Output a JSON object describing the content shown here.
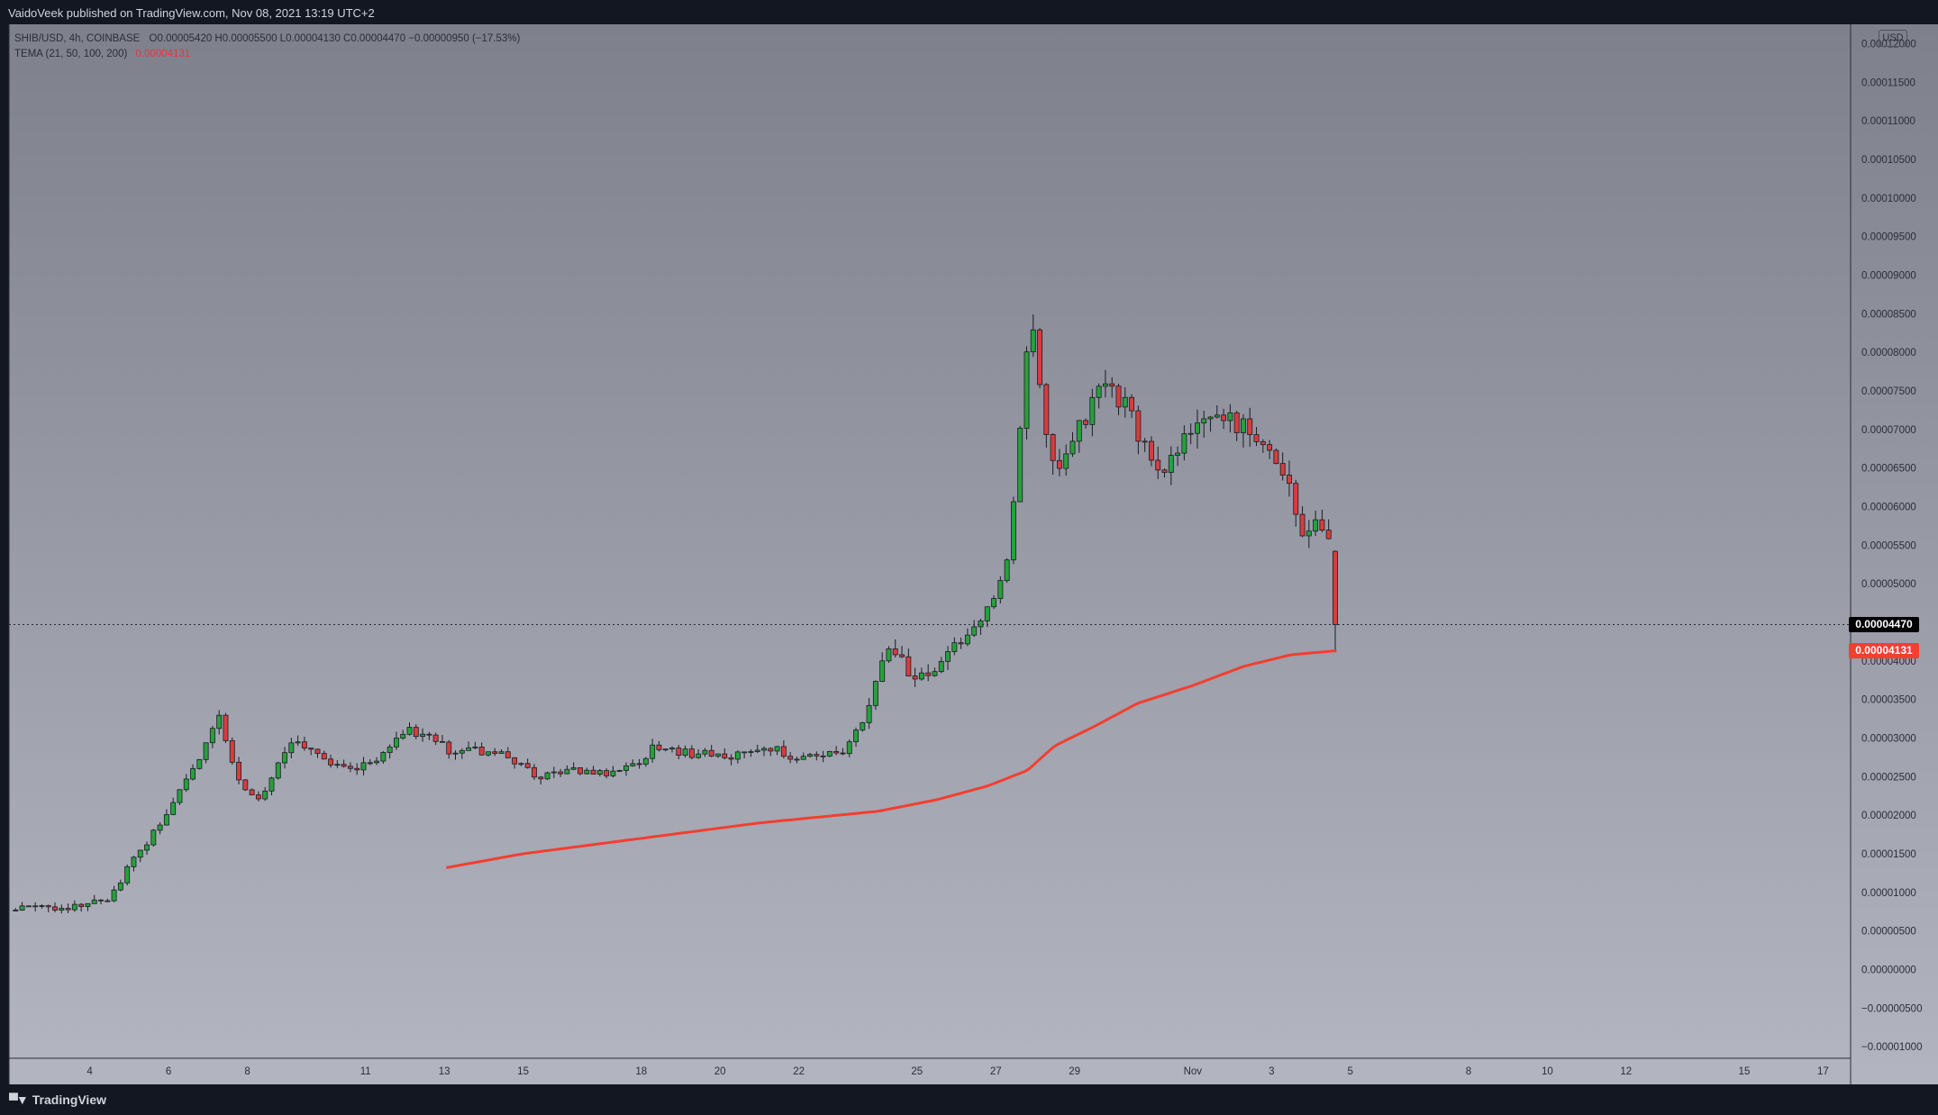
{
  "header": {
    "published_text": "VaidoVeek published on TradingView.com, Nov 08, 2021 13:19 UTC+2"
  },
  "legend": {
    "symbol": "SHIB/USD, 4h, COINBASE",
    "ohlc": "O0.00005420 H0.00005500 L0.00004130 C0.00004470 −0.00000950 (−17.53%)",
    "indicator": "TEMA (21, 50, 100, 200)",
    "indicator_value": "0.00004131"
  },
  "currency_badge": "USD",
  "price_tags": {
    "last_price": "0.00004470",
    "tema_price": "0.00004131"
  },
  "footer": {
    "brand": "TradingView"
  },
  "colors": {
    "up": "#26a13b",
    "down": "#d63d3d",
    "tema": "#f23f2f",
    "background_top": "#7e808c",
    "background_bottom": "#b2b4c0"
  },
  "chart_data": {
    "type": "candlestick",
    "symbol": "SHIB/USD",
    "timeframe": "4h",
    "y_ticks": [
      "0.00012000",
      "0.00011500",
      "0.00011000",
      "0.00010500",
      "0.00010000",
      "0.00009500",
      "0.00009000",
      "0.00008500",
      "0.00008000",
      "0.00007500",
      "0.00007000",
      "0.00006500",
      "0.00006000",
      "0.00005500",
      "0.00005000",
      "0.00004000",
      "0.00003500",
      "0.00003000",
      "0.00002500",
      "0.00002000",
      "0.00001500",
      "0.00001000",
      "0.00000500",
      "0.00000000",
      "−0.00000500",
      "−0.00001000"
    ],
    "ylim": [
      -1.15e-05,
      0.0001225
    ],
    "x_ticks": [
      {
        "label": "4",
        "day": 4
      },
      {
        "label": "6",
        "day": 6
      },
      {
        "label": "8",
        "day": 8
      },
      {
        "label": "11",
        "day": 11
      },
      {
        "label": "13",
        "day": 13
      },
      {
        "label": "15",
        "day": 15
      },
      {
        "label": "18",
        "day": 18
      },
      {
        "label": "20",
        "day": 20
      },
      {
        "label": "22",
        "day": 22
      },
      {
        "label": "25",
        "day": 25
      },
      {
        "label": "27",
        "day": 27
      },
      {
        "label": "29",
        "day": 29
      },
      {
        "label": "Nov",
        "day": 32
      },
      {
        "label": "3",
        "day": 34
      },
      {
        "label": "5",
        "day": 36
      },
      {
        "label": "8",
        "day": 39
      },
      {
        "label": "10",
        "day": 41
      },
      {
        "label": "12",
        "day": 43
      },
      {
        "label": "15",
        "day": 46
      },
      {
        "label": "17",
        "day": 48
      }
    ],
    "xlim_days": [
      1.95,
      48.7
    ],
    "last_close": 4.47e-05,
    "tema_last": 4.131e-05,
    "price_key_points": [
      [
        1.95,
        7.7e-06
      ],
      [
        3.5,
        8.1e-06
      ],
      [
        4.5,
        8.9e-06
      ],
      [
        5.0,
        1.35e-05
      ],
      [
        5.6,
        1.75e-05
      ],
      [
        6.2,
        2.25e-05
      ],
      [
        6.8,
        2.75e-05
      ],
      [
        7.3,
        3.3e-05
      ],
      [
        7.7,
        2.5e-05
      ],
      [
        8.3,
        2.2e-05
      ],
      [
        8.9,
        2.75e-05
      ],
      [
        9.3,
        3e-05
      ],
      [
        10.0,
        2.65e-05
      ],
      [
        10.8,
        2.62e-05
      ],
      [
        11.4,
        2.75e-05
      ],
      [
        11.9,
        3.1e-05
      ],
      [
        12.6,
        3.05e-05
      ],
      [
        13.1,
        2.85e-05
      ],
      [
        13.9,
        2.83e-05
      ],
      [
        14.5,
        2.8e-05
      ],
      [
        15.3,
        2.5e-05
      ],
      [
        15.9,
        2.58e-05
      ],
      [
        16.6,
        2.56e-05
      ],
      [
        17.3,
        2.55e-05
      ],
      [
        17.9,
        2.65e-05
      ],
      [
        18.3,
        2.88e-05
      ],
      [
        19.2,
        2.8e-05
      ],
      [
        20.0,
        2.78e-05
      ],
      [
        20.6,
        2.78e-05
      ],
      [
        21.2,
        2.9e-05
      ],
      [
        21.8,
        2.75e-05
      ],
      [
        22.5,
        2.75e-05
      ],
      [
        23.2,
        2.85e-05
      ],
      [
        23.7,
        3.3e-05
      ],
      [
        24.3,
        4.2e-05
      ],
      [
        24.6,
        4.1e-05
      ],
      [
        24.9,
        3.7e-05
      ],
      [
        25.5,
        3.9e-05
      ],
      [
        26.1,
        4.25e-05
      ],
      [
        26.8,
        4.7e-05
      ],
      [
        27.3,
        5.3e-05
      ],
      [
        27.6,
        7e-05
      ],
      [
        27.9,
        8.6e-05
      ],
      [
        28.2,
        7e-05
      ],
      [
        28.6,
        6.4e-05
      ],
      [
        28.9,
        6.8e-05
      ],
      [
        29.3,
        7.2e-05
      ],
      [
        29.9,
        7.6e-05
      ],
      [
        30.4,
        7.2e-05
      ],
      [
        30.9,
        6.6e-05
      ],
      [
        31.3,
        6.4e-05
      ],
      [
        31.8,
        6.9e-05
      ],
      [
        32.3,
        7.2e-05
      ],
      [
        32.9,
        7.1e-05
      ],
      [
        33.5,
        7e-05
      ],
      [
        34.0,
        6.6e-05
      ],
      [
        34.4,
        6.4e-05
      ],
      [
        34.8,
        5.6e-05
      ],
      [
        35.2,
        5.8e-05
      ],
      [
        35.5,
        5.42e-05
      ],
      [
        35.65,
        4.47e-05
      ]
    ],
    "tema_key_points": [
      [
        13.05,
        1.32e-05
      ],
      [
        15.0,
        1.5e-05
      ],
      [
        18.0,
        1.7e-05
      ],
      [
        21.0,
        1.9e-05
      ],
      [
        24.0,
        2.05e-05
      ],
      [
        25.5,
        2.2e-05
      ],
      [
        26.8,
        2.38e-05
      ],
      [
        27.8,
        2.58e-05
      ],
      [
        28.5,
        2.9e-05
      ],
      [
        29.5,
        3.15e-05
      ],
      [
        30.6,
        3.45e-05
      ],
      [
        32.0,
        3.68e-05
      ],
      [
        33.3,
        3.93e-05
      ],
      [
        34.5,
        4.08e-05
      ],
      [
        35.65,
        4.131e-05
      ]
    ]
  }
}
